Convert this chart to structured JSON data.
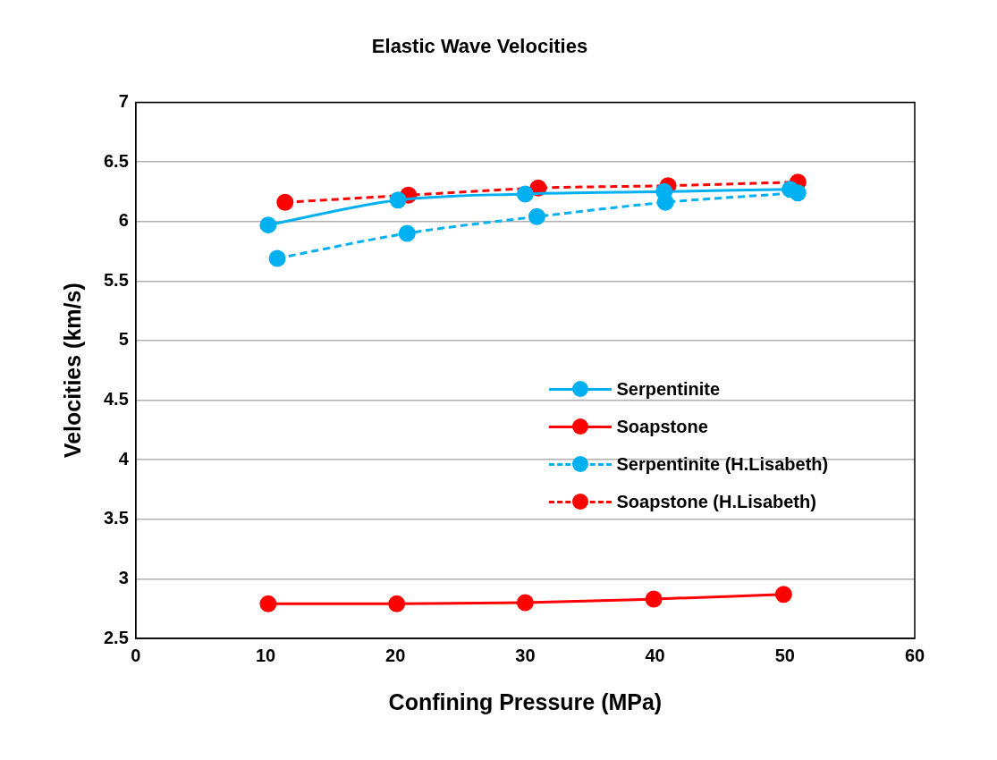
{
  "chart_data": {
    "type": "line",
    "title": "Elastic Wave Velocities",
    "xlabel": "Confining Pressure (MPa)",
    "ylabel": "Velocities (km/s)",
    "xlim": [
      0,
      60
    ],
    "xticks": [
      0,
      10,
      20,
      30,
      40,
      50,
      60
    ],
    "ylim": [
      2.5,
      7
    ],
    "yticks": [
      2.5,
      3,
      3.5,
      4,
      4.5,
      5,
      5.5,
      6,
      6.5,
      7
    ],
    "grid": "y",
    "legend": "right",
    "marker": "circle",
    "series": [
      {
        "name": "Serpentinite",
        "color": "#00b0f0",
        "line_style": "solid",
        "x": [
          10.2,
          20.2,
          30.0,
          40.7,
          50.4
        ],
        "values": [
          5.97,
          6.18,
          6.23,
          6.25,
          6.27
        ]
      },
      {
        "name": "Soapstone",
        "color": "#ff0000",
        "line_style": "solid",
        "x": [
          10.2,
          20.1,
          30.0,
          39.9,
          49.9
        ],
        "values": [
          2.79,
          2.79,
          2.8,
          2.83,
          2.87
        ]
      },
      {
        "name": "Serpentinite (H.Lisabeth)",
        "color": "#00b0f0",
        "line_style": "dashed",
        "x": [
          10.9,
          20.9,
          30.9,
          40.8,
          51.0
        ],
        "values": [
          5.69,
          5.9,
          6.04,
          6.16,
          6.24
        ]
      },
      {
        "name": "Soapstone (H.Lisabeth)",
        "color": "#ff0000",
        "line_style": "dashed",
        "x": [
          11.5,
          21.0,
          31.0,
          41.0,
          51.0
        ],
        "values": [
          6.16,
          6.22,
          6.28,
          6.3,
          6.33
        ]
      }
    ]
  }
}
